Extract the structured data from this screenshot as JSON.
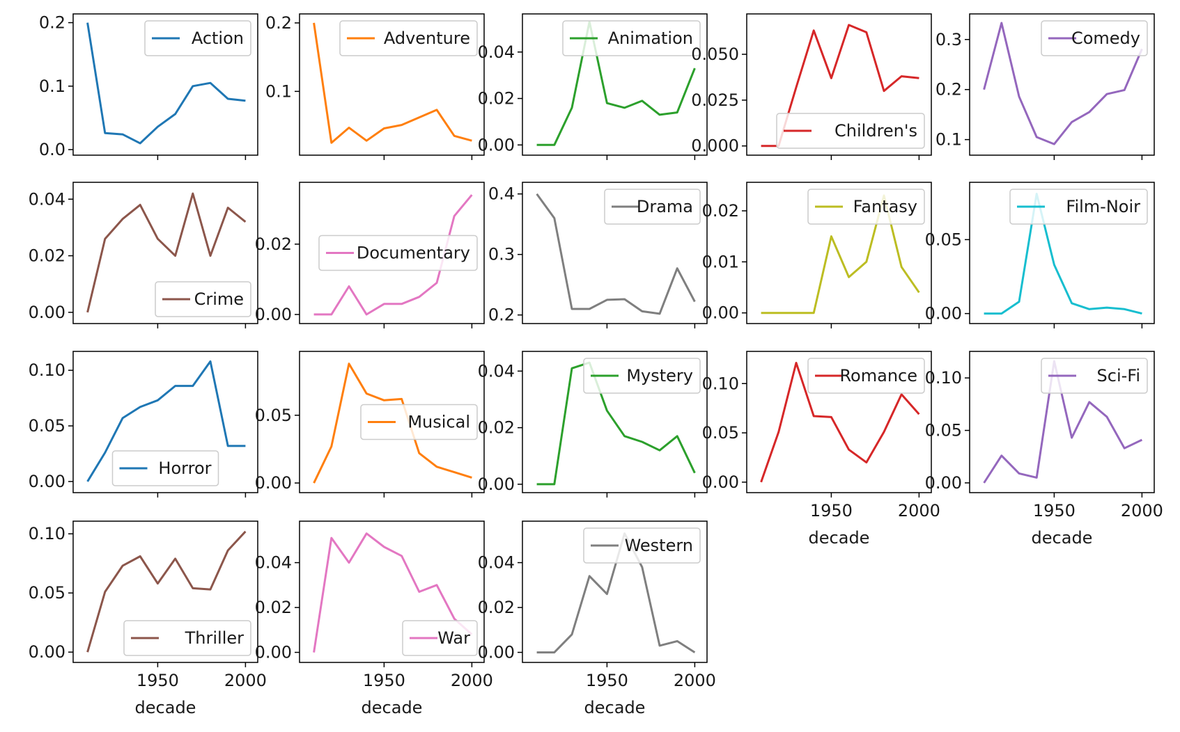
{
  "chart_data": {
    "type": "line",
    "layout": "small-multiples",
    "x": [
      1910,
      1920,
      1930,
      1940,
      1950,
      1960,
      1970,
      1980,
      1990,
      2000
    ],
    "xlabel": "decade",
    "xticks": [
      1950,
      2000
    ],
    "charts": [
      {
        "name": "Action",
        "color": "#1f77b4",
        "legend": "upper right",
        "ylim": [
          0,
          0.205
        ],
        "yticks": [
          "0.0",
          "0.1",
          "0.2"
        ],
        "values": [
          0.2,
          0.026,
          0.024,
          0.01,
          0.036,
          0.056,
          0.1,
          0.105,
          0.08,
          0.077
        ]
      },
      {
        "name": "Adventure",
        "color": "#ff7f0e",
        "legend": "upper right",
        "ylim": [
          0.015,
          0.205
        ],
        "yticks": [
          "0.1",
          "0.2"
        ],
        "values": [
          0.2,
          0.025,
          0.047,
          0.028,
          0.046,
          0.051,
          0.062,
          0.073,
          0.035,
          0.028
        ]
      },
      {
        "name": "Animation",
        "color": "#2ca02c",
        "legend": "upper right",
        "ylim": [
          -0.002,
          0.054
        ],
        "yticks": [
          "0.00",
          "0.02",
          "0.04"
        ],
        "values": [
          0.0,
          0.0,
          0.016,
          0.053,
          0.018,
          0.016,
          0.019,
          0.013,
          0.014,
          0.033
        ]
      },
      {
        "name": "Children's",
        "color": "#d62728",
        "legend": "lower right",
        "ylim": [
          -0.002,
          0.069
        ],
        "yticks": [
          "0.000",
          "0.025",
          "0.050"
        ],
        "values": [
          0.0,
          0.0,
          0.032,
          0.063,
          0.037,
          0.066,
          0.062,
          0.03,
          0.038,
          0.037
        ]
      },
      {
        "name": "Comedy",
        "color": "#9467bd",
        "legend": "upper right",
        "ylim": [
          0.08,
          0.34
        ],
        "yticks": [
          "0.1",
          "0.2",
          "0.3"
        ],
        "values": [
          0.2,
          0.333,
          0.186,
          0.105,
          0.091,
          0.135,
          0.155,
          0.191,
          0.199,
          0.281
        ]
      },
      {
        "name": "Crime",
        "color": "#8c564b",
        "legend": "lower right",
        "ylim": [
          -0.002,
          0.044
        ],
        "yticks": [
          "0.00",
          "0.02",
          "0.04"
        ],
        "values": [
          0.0,
          0.026,
          0.033,
          0.038,
          0.026,
          0.02,
          0.042,
          0.02,
          0.037,
          0.032
        ]
      },
      {
        "name": "Documentary",
        "color": "#e377c2",
        "legend": "center right",
        "ylim": [
          -0.001,
          0.036
        ],
        "yticks": [
          "0.00",
          "0.02"
        ],
        "values": [
          0.0,
          0.0,
          0.008,
          0.0,
          0.003,
          0.003,
          0.005,
          0.009,
          0.028,
          0.034
        ]
      },
      {
        "name": "Drama",
        "color": "#7f7f7f",
        "legend": "upper right",
        "ylim": [
          0.195,
          0.41
        ],
        "yticks": [
          "0.2",
          "0.3",
          "0.4"
        ],
        "values": [
          0.4,
          0.36,
          0.21,
          0.21,
          0.225,
          0.226,
          0.206,
          0.202,
          0.277,
          0.222
        ]
      },
      {
        "name": "Fantasy",
        "color": "#bcbd22",
        "legend": "upper right",
        "ylim": [
          -0.001,
          0.0245
        ],
        "yticks": [
          "0.00",
          "0.01",
          "0.02"
        ],
        "values": [
          0.0,
          0.0,
          0.0,
          0.0,
          0.015,
          0.007,
          0.01,
          0.023,
          0.009,
          0.004
        ]
      },
      {
        "name": "Film-Noir",
        "color": "#17becf",
        "legend": "upper right",
        "ylim": [
          -0.003,
          0.085
        ],
        "yticks": [
          "0.00",
          "0.05"
        ],
        "values": [
          0.0,
          0.0,
          0.008,
          0.081,
          0.033,
          0.007,
          0.003,
          0.004,
          0.003,
          0.0
        ]
      },
      {
        "name": "Horror",
        "color": "#1f77b4",
        "legend": "lower center",
        "ylim": [
          -0.005,
          0.112
        ],
        "yticks": [
          "0.00",
          "0.05",
          "0.10"
        ],
        "values": [
          0.0,
          0.026,
          0.057,
          0.067,
          0.073,
          0.086,
          0.086,
          0.108,
          0.032,
          0.032
        ]
      },
      {
        "name": "Musical",
        "color": "#ff7f0e",
        "legend": "center right",
        "ylim": [
          -0.003,
          0.093
        ],
        "yticks": [
          "0.00",
          "0.05"
        ],
        "values": [
          0.0,
          0.027,
          0.088,
          0.066,
          0.061,
          0.062,
          0.022,
          0.012,
          0.008,
          0.004
        ]
      },
      {
        "name": "Mystery",
        "color": "#2ca02c",
        "legend": "upper right",
        "ylim": [
          -0.001,
          0.045
        ],
        "yticks": [
          "0.00",
          "0.02",
          "0.04"
        ],
        "values": [
          0.0,
          0.0,
          0.041,
          0.043,
          0.026,
          0.017,
          0.015,
          0.012,
          0.017,
          0.004
        ]
      },
      {
        "name": "Romance",
        "color": "#d62728",
        "legend": "upper right",
        "ylim": [
          -0.005,
          0.127
        ],
        "yticks": [
          "0.00",
          "0.05",
          "0.10"
        ],
        "values": [
          0.0,
          0.051,
          0.121,
          0.067,
          0.066,
          0.033,
          0.02,
          0.051,
          0.089,
          0.069
        ]
      },
      {
        "name": "Sci-Fi",
        "color": "#9467bd",
        "legend": "upper right",
        "ylim": [
          -0.004,
          0.12
        ],
        "yticks": [
          "0.00",
          "0.05",
          "0.10"
        ],
        "values": [
          0.0,
          0.026,
          0.009,
          0.005,
          0.116,
          0.043,
          0.077,
          0.063,
          0.033,
          0.041
        ]
      },
      {
        "name": "Thriller",
        "color": "#8c564b",
        "legend": "lower right",
        "ylim": [
          -0.004,
          0.106
        ],
        "yticks": [
          "0.00",
          "0.05",
          "0.10"
        ],
        "values": [
          0.0,
          0.051,
          0.073,
          0.081,
          0.058,
          0.079,
          0.054,
          0.053,
          0.086,
          0.102
        ]
      },
      {
        "name": "War",
        "color": "#e377c2",
        "legend": "lower right",
        "ylim": [
          -0.002,
          0.056
        ],
        "yticks": [
          "0.00",
          "0.02",
          "0.04"
        ],
        "values": [
          0.0,
          0.051,
          0.04,
          0.053,
          0.047,
          0.043,
          0.027,
          0.03,
          0.015,
          0.008
        ]
      },
      {
        "name": "Western",
        "color": "#7f7f7f",
        "legend": "upper right",
        "ylim": [
          -0.002,
          0.056
        ],
        "yticks": [
          "0.00",
          "0.02",
          "0.04"
        ],
        "values": [
          0.0,
          0.0,
          0.008,
          0.034,
          0.026,
          0.053,
          0.038,
          0.003,
          0.005,
          0.0
        ]
      }
    ]
  }
}
